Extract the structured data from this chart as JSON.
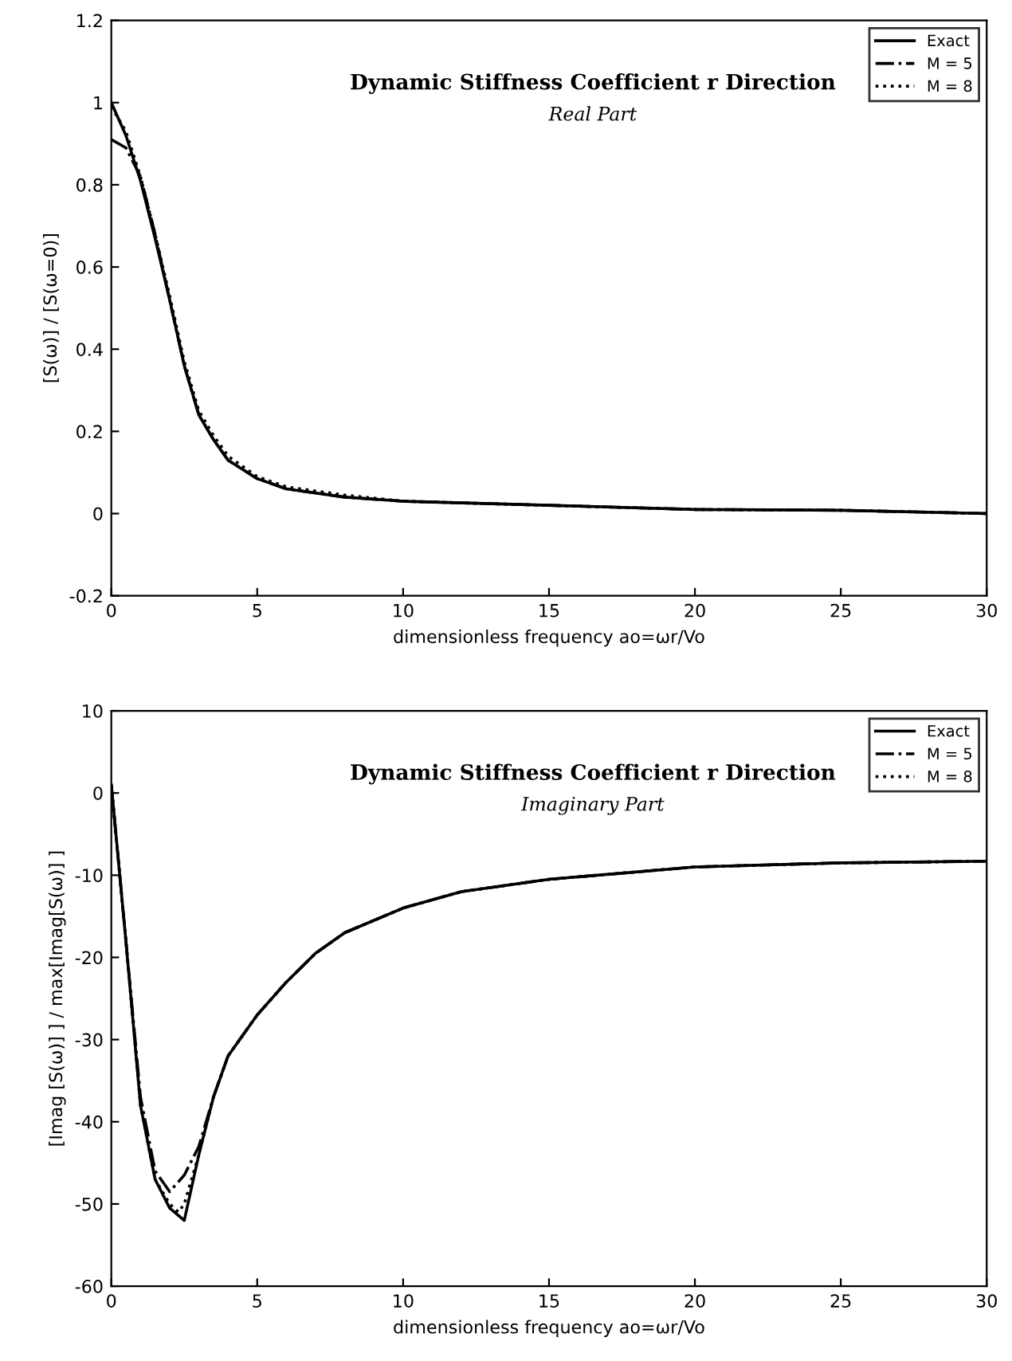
{
  "chart_data": [
    {
      "type": "line",
      "title": "Dynamic Stiffness Coefficient r Direction",
      "subtitle": "Real Part",
      "xlabel": "dimensionless frequency ao=ωr/Vo",
      "ylabel": "[S(ω)] / [S(ω=0)]",
      "xlim": [
        0,
        30
      ],
      "ylim": [
        -0.2,
        1.2
      ],
      "xticks": [
        0,
        5,
        10,
        15,
        20,
        25,
        30
      ],
      "yticks": [
        -0.2,
        0,
        0.2,
        0.4,
        0.6,
        0.8,
        1,
        1.2
      ],
      "legend": "top right",
      "grid": false,
      "series": [
        {
          "name": "Exact",
          "color": "#000000",
          "line_style": "solid",
          "x": [
            0,
            0.5,
            1,
            1.5,
            2,
            2.5,
            3,
            3.5,
            4,
            5,
            6,
            8,
            10,
            15,
            20,
            25,
            30
          ],
          "values": [
            1.0,
            0.92,
            0.81,
            0.67,
            0.52,
            0.36,
            0.24,
            0.18,
            0.13,
            0.085,
            0.06,
            0.04,
            0.03,
            0.02,
            0.01,
            0.008,
            0.0
          ]
        },
        {
          "name": "M = 5",
          "color": "#000000",
          "line_style": "dashdot",
          "x": [
            0,
            0.5,
            1,
            1.5,
            2,
            2.5,
            3,
            3.5,
            4,
            5,
            6,
            8,
            10,
            15,
            20,
            25,
            30
          ],
          "values": [
            0.91,
            0.89,
            0.82,
            0.68,
            0.52,
            0.36,
            0.24,
            0.18,
            0.13,
            0.085,
            0.06,
            0.04,
            0.03,
            0.02,
            0.01,
            0.008,
            0.0
          ]
        },
        {
          "name": "M = 8",
          "color": "#000000",
          "line_style": "dotted",
          "x": [
            0,
            0.5,
            1,
            1.5,
            2,
            2.5,
            3,
            3.5,
            4,
            5,
            6,
            8,
            10,
            15,
            20,
            25,
            30
          ],
          "values": [
            0.99,
            0.93,
            0.82,
            0.68,
            0.53,
            0.37,
            0.25,
            0.19,
            0.14,
            0.09,
            0.065,
            0.045,
            0.03,
            0.02,
            0.01,
            0.008,
            0.0
          ]
        }
      ]
    },
    {
      "type": "line",
      "title": "Dynamic Stiffness Coefficient r Direction",
      "subtitle": "Imaginary Part",
      "xlabel": "dimensionless frequency ao=ωr/Vo",
      "ylabel": "[Imag [S(ω)] ] / max[Imag[S(ω)] ]",
      "xlim": [
        0,
        30
      ],
      "ylim": [
        -60,
        10
      ],
      "xticks": [
        0,
        5,
        10,
        15,
        20,
        25,
        30
      ],
      "yticks": [
        -60,
        -50,
        -40,
        -30,
        -20,
        -10,
        0,
        10
      ],
      "legend": "top right",
      "grid": false,
      "series": [
        {
          "name": "Exact",
          "color": "#000000",
          "line_style": "solid",
          "x": [
            0,
            0.5,
            1,
            1.5,
            2,
            2.5,
            3,
            3.5,
            4,
            5,
            6,
            7,
            8,
            10,
            12,
            15,
            20,
            25,
            30
          ],
          "values": [
            1,
            -18,
            -38,
            -47,
            -50.5,
            -52,
            -44,
            -37,
            -32,
            -27,
            -23,
            -19.5,
            -17,
            -14,
            -12,
            -10.5,
            -9,
            -8.5,
            -8.3
          ]
        },
        {
          "name": "M = 5",
          "color": "#000000",
          "line_style": "dashdot",
          "x": [
            0,
            0.5,
            1,
            1.5,
            2,
            2.5,
            3,
            3.5,
            4,
            5,
            6,
            7,
            8,
            10,
            12,
            15,
            20,
            25,
            30
          ],
          "values": [
            1,
            -18,
            -37,
            -46,
            -48.5,
            -46.5,
            -43,
            -37,
            -32,
            -27,
            -23,
            -19.5,
            -17,
            -14,
            -12,
            -10.5,
            -9,
            -8.5,
            -8.3
          ]
        },
        {
          "name": "M = 8",
          "color": "#000000",
          "line_style": "dotted",
          "x": [
            0,
            0.5,
            1,
            1.5,
            2,
            2.3,
            2.5,
            3,
            3.5,
            4,
            5,
            6,
            7,
            8,
            10,
            12,
            15,
            20,
            25,
            30
          ],
          "values": [
            1,
            -18,
            -38,
            -47,
            -50,
            -51,
            -50,
            -44,
            -37,
            -32,
            -27,
            -23,
            -19.5,
            -17,
            -14,
            -12,
            -10.5,
            -9,
            -8.5,
            -8.3
          ]
        }
      ]
    }
  ]
}
